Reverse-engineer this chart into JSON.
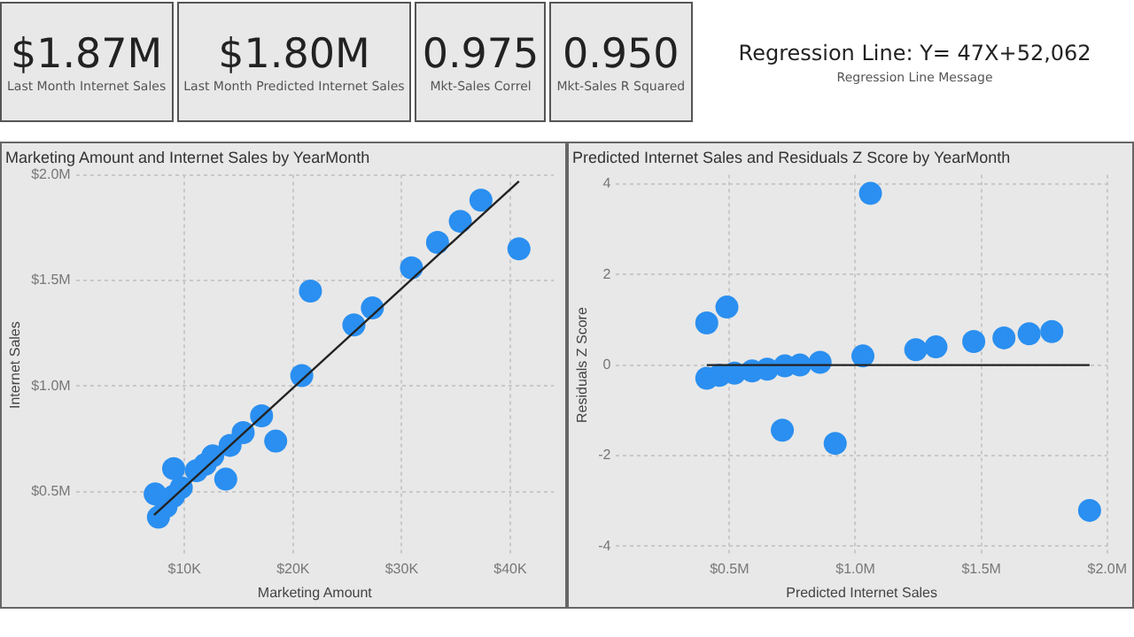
{
  "chart_data": [
    {
      "type": "other",
      "annotations": [
        "$1.87M",
        "Last Month Internet Sales",
        "$1.80M",
        "Last Month Predicted Internet Sales",
        "0.975",
        "Mkt-Sales Correl",
        "0.950",
        "Mkt-Sales R Squared",
        "Regression Line: Y= 47X+52,062",
        "Regression Line Message"
      ]
    },
    {
      "type": "scatter",
      "title": "Marketing Amount and Internet Sales by YearMonth",
      "xlabel": "Marketing Amount",
      "ylabel": "Internet Sales",
      "xlim": [
        0,
        44000
      ],
      "ylim": [
        200000,
        2000000
      ],
      "xticks": [
        {
          "value": 10000,
          "label": "$10K"
        },
        {
          "value": 20000,
          "label": "$20K"
        },
        {
          "value": 30000,
          "label": "$30K"
        },
        {
          "value": 40000,
          "label": "$40K"
        }
      ],
      "yticks": [
        {
          "value": 500000,
          "label": "$0.5M"
        },
        {
          "value": 1000000,
          "label": "$1.0M"
        },
        {
          "value": 1500000,
          "label": "$1.5M"
        },
        {
          "value": 2000000,
          "label": "$2.0M"
        }
      ],
      "grid": true,
      "legend": false,
      "marker": "circle",
      "series": [
        {
          "type": "scatter",
          "color": "#2a8ff0",
          "x": [
            7300,
            7600,
            9000,
            13800,
            8300,
            9000,
            9700,
            11100,
            11900,
            12600,
            14200,
            15400,
            17100,
            18400,
            20800,
            21600,
            25600,
            27300,
            30900,
            33300,
            35400,
            37300,
            40800
          ],
          "values": [
            490000,
            380000,
            610000,
            560000,
            430000,
            480000,
            520000,
            600000,
            630000,
            670000,
            720000,
            780000,
            860000,
            740000,
            1050000,
            1450000,
            1290000,
            1370000,
            1560000,
            1680000,
            1780000,
            1880000,
            1650000
          ]
        },
        {
          "type": "line",
          "color": "#222222",
          "marker": "none",
          "x": [
            7200,
            40800
          ],
          "values": [
            390000,
            1970000
          ]
        }
      ]
    },
    {
      "type": "scatter",
      "title": "Predicted Internet Sales and Residuals Z Score by YearMonth",
      "xlabel": "Predicted Internet Sales",
      "ylabel": "Residuals Z Score",
      "xlim": [
        50000,
        2000000
      ],
      "ylim": [
        -4.2,
        4.2
      ],
      "xticks": [
        {
          "value": 500000,
          "label": "$0.5M"
        },
        {
          "value": 1000000,
          "label": "$1.0M"
        },
        {
          "value": 1500000,
          "label": "$1.5M"
        },
        {
          "value": 2000000,
          "label": "$2.0M"
        }
      ],
      "yticks": [
        -4,
        -2,
        0,
        2,
        4
      ],
      "grid": true,
      "legend": false,
      "marker": "circle",
      "series": [
        {
          "type": "scatter",
          "color": "#2a8ff0",
          "x": [
            410000,
            490000,
            1060000,
            710000,
            920000,
            1930000,
            1240000,
            1320000,
            1470000,
            1590000,
            1690000,
            1780000,
            1030000,
            860000,
            780000,
            720000,
            410000,
            460000,
            520000,
            590000,
            650000
          ],
          "values": [
            0.93,
            1.28,
            3.79,
            -1.44,
            -1.73,
            -3.21,
            0.34,
            0.4,
            0.52,
            0.6,
            0.69,
            0.74,
            0.2,
            0.06,
            0,
            -0.02,
            -0.29,
            -0.23,
            -0.18,
            -0.13,
            -0.09
          ]
        },
        {
          "type": "line",
          "color": "#222222",
          "marker": "none",
          "x": [
            410000,
            1930000
          ],
          "values": [
            0,
            0
          ]
        }
      ]
    }
  ]
}
